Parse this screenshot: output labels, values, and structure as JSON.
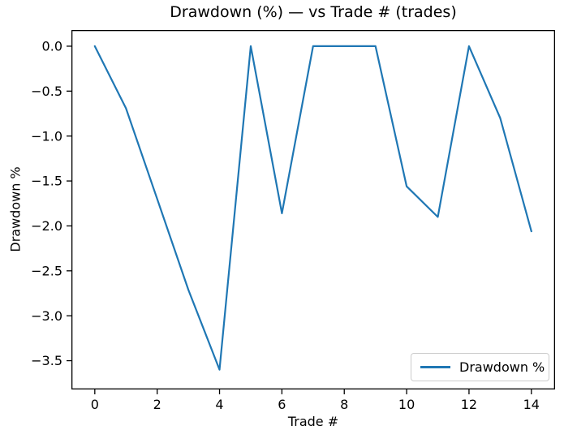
{
  "figure": {
    "colors": {
      "line": "#1f77b4",
      "spine": "#000000",
      "text": "#000000",
      "legend_border": "#cccccc",
      "background": "#ffffff"
    }
  },
  "chart_data": {
    "type": "line",
    "title": "Drawdown (%) — vs Trade # (trades)",
    "xlabel": "Trade #",
    "ylabel": "Drawdown %",
    "legend": [
      "Drawdown %"
    ],
    "legend_position": "lower right",
    "grid": false,
    "x": [
      0,
      1,
      2,
      3,
      4,
      5,
      6,
      7,
      8,
      9,
      10,
      11,
      12,
      13,
      14
    ],
    "series": [
      {
        "name": "Drawdown %",
        "values": [
          0.0,
          -0.69,
          -1.7,
          -2.71,
          -3.6,
          0.0,
          -1.86,
          0.0,
          0.0,
          0.0,
          -1.56,
          -1.9,
          0.0,
          -0.8,
          -2.06
        ]
      }
    ],
    "xlim": [
      -0.75,
      14.76
    ],
    "ylim": [
      -3.82,
      0.18
    ],
    "xticks": [
      0,
      2,
      4,
      6,
      8,
      10,
      12,
      14
    ],
    "xtick_labels": [
      "0",
      "2",
      "4",
      "6",
      "8",
      "10",
      "12",
      "14"
    ],
    "yticks": [
      0.0,
      -0.5,
      -1.0,
      -1.5,
      -2.0,
      -2.5,
      -3.0,
      -3.5
    ],
    "ytick_labels": [
      "0.0",
      "−0.5",
      "−1.0",
      "−1.5",
      "−2.0",
      "−2.5",
      "−3.0",
      "−3.5"
    ],
    "line_color": "#1f77b4"
  }
}
